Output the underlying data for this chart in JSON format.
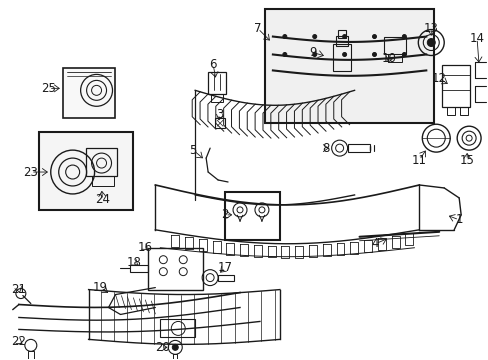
{
  "background_color": "#ffffff",
  "line_color": "#1a1a1a",
  "label_fontsize": 8.5,
  "figsize": [
    4.89,
    3.6
  ],
  "dpi": 100
}
